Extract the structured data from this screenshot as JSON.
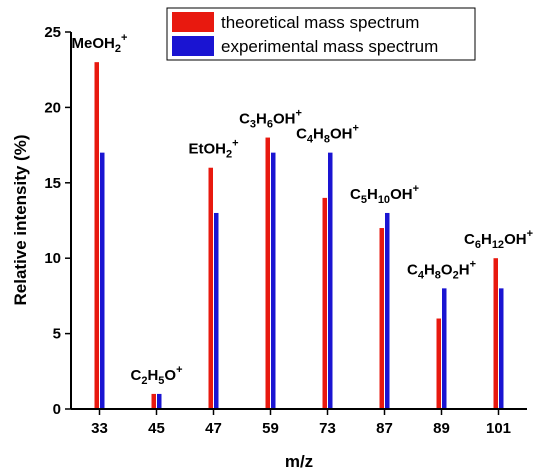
{
  "chart_data": {
    "type": "bar",
    "xlabel": "m/z",
    "ylabel": "Relative intensity (%)",
    "ylim": [
      0,
      25
    ],
    "yticks": [
      "0",
      "5",
      "10",
      "15",
      "20",
      "25"
    ],
    "categories": [
      "33",
      "45",
      "47",
      "59",
      "73",
      "87",
      "89",
      "101"
    ],
    "series": [
      {
        "name": "theoretical mass spectrum",
        "color": "#e8190f",
        "values": [
          23,
          1,
          16,
          18,
          14,
          12,
          6,
          10
        ]
      },
      {
        "name": "experimental mass spectrum",
        "color": "#1a14d2",
        "values": [
          17,
          1,
          13,
          17,
          17,
          13,
          8,
          8
        ]
      }
    ],
    "annotations": [
      {
        "category": "33",
        "parts": [
          [
            "MeOH",
            ""
          ],
          [
            "2",
            "sub"
          ],
          [
            "+",
            "sup"
          ]
        ]
      },
      {
        "category": "45",
        "parts": [
          [
            "C",
            ""
          ],
          [
            "2",
            "sub"
          ],
          [
            "H",
            ""
          ],
          [
            "5",
            "sub"
          ],
          [
            "O",
            ""
          ],
          [
            "+",
            "sup"
          ]
        ]
      },
      {
        "category": "47",
        "parts": [
          [
            "EtOH",
            ""
          ],
          [
            "2",
            "sub"
          ],
          [
            "+",
            "sup"
          ]
        ]
      },
      {
        "category": "59",
        "parts": [
          [
            "C",
            ""
          ],
          [
            "3",
            "sub"
          ],
          [
            "H",
            ""
          ],
          [
            "6",
            "sub"
          ],
          [
            "OH",
            ""
          ],
          [
            "+",
            "sup"
          ]
        ]
      },
      {
        "category": "73",
        "parts": [
          [
            "C",
            ""
          ],
          [
            "4",
            "sub"
          ],
          [
            "H",
            ""
          ],
          [
            "8",
            "sub"
          ],
          [
            "OH",
            ""
          ],
          [
            "+",
            "sup"
          ]
        ]
      },
      {
        "category": "87",
        "parts": [
          [
            "C",
            ""
          ],
          [
            "5",
            "sub"
          ],
          [
            "H",
            ""
          ],
          [
            "10",
            "sub"
          ],
          [
            "OH",
            ""
          ],
          [
            "+",
            "sup"
          ]
        ]
      },
      {
        "category": "89",
        "parts": [
          [
            "C",
            ""
          ],
          [
            "4",
            "sub"
          ],
          [
            "H",
            ""
          ],
          [
            "8",
            "sub"
          ],
          [
            "O",
            ""
          ],
          [
            "2",
            "sub"
          ],
          [
            "H",
            ""
          ],
          [
            "+",
            "sup"
          ]
        ]
      },
      {
        "category": "101",
        "parts": [
          [
            "C",
            ""
          ],
          [
            "6",
            "sub"
          ],
          [
            "H",
            ""
          ],
          [
            "12",
            "sub"
          ],
          [
            "OH",
            ""
          ],
          [
            "+",
            "sup"
          ]
        ]
      }
    ],
    "grid": false,
    "legend_position": "top-right"
  }
}
